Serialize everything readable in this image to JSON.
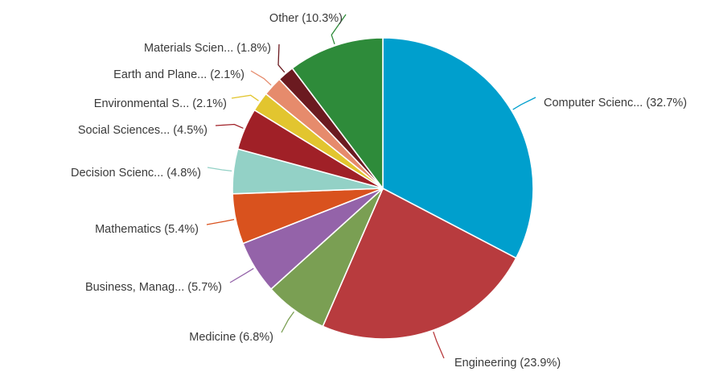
{
  "chart_data": {
    "type": "pie",
    "title": "",
    "start": "top",
    "direction": "clockwise",
    "slices": [
      {
        "label": "Computer Scienc...",
        "value": 32.7,
        "pct_text": "(32.7%)",
        "color": "#009fcd"
      },
      {
        "label": "Engineering",
        "value": 23.9,
        "pct_text": "(23.9%)",
        "color": "#b83b3e"
      },
      {
        "label": "Medicine",
        "value": 6.8,
        "pct_text": "(6.8%)",
        "color": "#7a9f53"
      },
      {
        "label": "Business, Manag...",
        "value": 5.7,
        "pct_text": "(5.7%)",
        "color": "#9463a9"
      },
      {
        "label": "Mathematics",
        "value": 5.4,
        "pct_text": "(5.4%)",
        "color": "#d9521e"
      },
      {
        "label": "Decision Scienc...",
        "value": 4.8,
        "pct_text": "(4.8%)",
        "color": "#93d1c6"
      },
      {
        "label": "Social Sciences...",
        "value": 4.5,
        "pct_text": "(4.5%)",
        "color": "#a02027"
      },
      {
        "label": "Environmental S...",
        "value": 2.1,
        "pct_text": "(2.1%)",
        "color": "#e2c52f"
      },
      {
        "label": "Earth and Plane...",
        "value": 2.1,
        "pct_text": "(2.1%)",
        "color": "#e68b6c"
      },
      {
        "label": "Materials Scien...",
        "value": 1.8,
        "pct_text": "(1.8%)",
        "color": "#6b1a20"
      },
      {
        "label": "Other",
        "value": 10.3,
        "pct_text": "(10.3%)",
        "color": "#2e8b3a"
      }
    ]
  }
}
